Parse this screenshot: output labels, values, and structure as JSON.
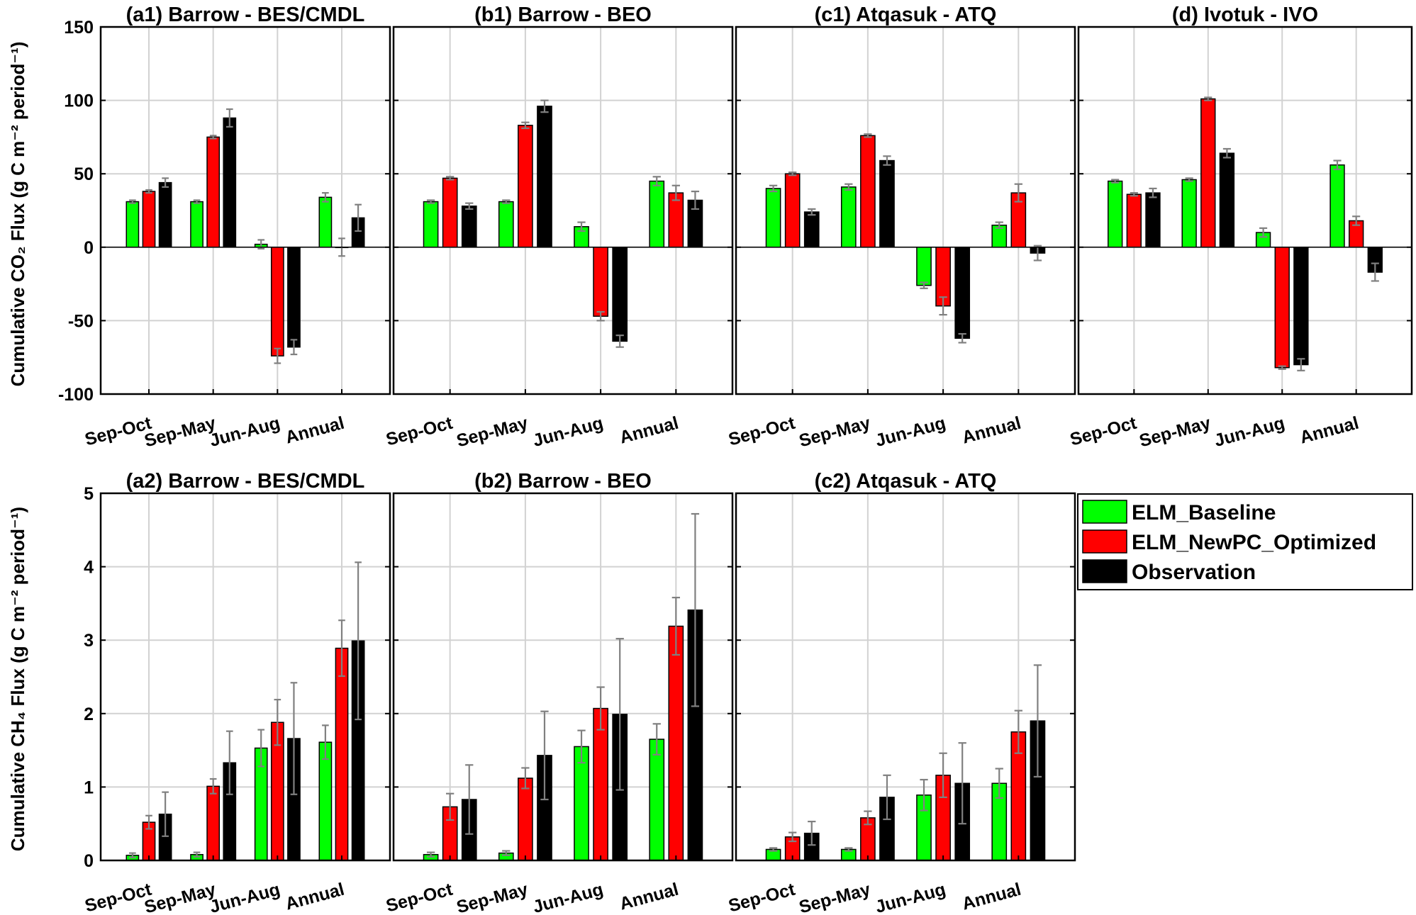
{
  "figure": {
    "co2_ylabel": "Cumulative CO₂ Flux (g C m⁻² period⁻¹)",
    "ch4_ylabel": "Cumulative CH₄ Flux (g C m⁻² period⁻¹)"
  },
  "legend": {
    "items": [
      {
        "label": "ELM_Baseline",
        "color": "#00ff00"
      },
      {
        "label": "ELM_NewPC_Optimized",
        "color": "#ff0000"
      },
      {
        "label": "Observation",
        "color": "#000000"
      }
    ]
  },
  "chart_data": [
    {
      "type": "bar",
      "title": "(a1) Barrow - BES/CMDL",
      "categories": [
        "Sep-Oct",
        "Sep-May",
        "Jun-Aug",
        "Annual"
      ],
      "ylim": [
        -100,
        150
      ],
      "yticks": [
        -100,
        -50,
        0,
        50,
        100,
        150
      ],
      "series": [
        {
          "name": "ELM_Baseline",
          "values": [
            31,
            31,
            2,
            34
          ],
          "errors": [
            1,
            1,
            3,
            3
          ]
        },
        {
          "name": "ELM_NewPC_Optimized",
          "values": [
            38,
            75,
            -74,
            0
          ],
          "errors": [
            1,
            1,
            5,
            6
          ]
        },
        {
          "name": "Observation",
          "values": [
            44,
            88,
            -68,
            20
          ],
          "errors": [
            3,
            6,
            5,
            9
          ]
        }
      ]
    },
    {
      "type": "bar",
      "title": "(b1) Barrow - BEO",
      "categories": [
        "Sep-Oct",
        "Sep-May",
        "Jun-Aug",
        "Annual"
      ],
      "ylim": [
        -100,
        150
      ],
      "yticks": [
        -100,
        -50,
        0,
        50,
        100,
        150
      ],
      "series": [
        {
          "name": "ELM_Baseline",
          "values": [
            31,
            31,
            14,
            45
          ],
          "errors": [
            1,
            1,
            3,
            3
          ]
        },
        {
          "name": "ELM_NewPC_Optimized",
          "values": [
            47,
            83,
            -47,
            37
          ],
          "errors": [
            1,
            2,
            3,
            5
          ]
        },
        {
          "name": "Observation",
          "values": [
            28,
            96,
            -64,
            32
          ],
          "errors": [
            2,
            4,
            4,
            6
          ]
        }
      ]
    },
    {
      "type": "bar",
      "title": "(c1) Atqasuk - ATQ",
      "categories": [
        "Sep-Oct",
        "Sep-May",
        "Jun-Aug",
        "Annual"
      ],
      "ylim": [
        -100,
        150
      ],
      "yticks": [
        -100,
        -50,
        0,
        50,
        100,
        150
      ],
      "series": [
        {
          "name": "ELM_Baseline",
          "values": [
            40,
            41,
            -26,
            15
          ],
          "errors": [
            2,
            2,
            2,
            2
          ]
        },
        {
          "name": "ELM_NewPC_Optimized",
          "values": [
            50,
            76,
            -40,
            37
          ],
          "errors": [
            1,
            1,
            6,
            6
          ]
        },
        {
          "name": "Observation",
          "values": [
            24,
            59,
            -62,
            -4
          ],
          "errors": [
            2,
            3,
            3,
            5
          ]
        }
      ]
    },
    {
      "type": "bar",
      "title": "(d) Ivotuk - IVO",
      "categories": [
        "Sep-Oct",
        "Sep-May",
        "Jun-Aug",
        "Annual"
      ],
      "ylim": [
        -100,
        150
      ],
      "yticks": [
        -100,
        -50,
        0,
        50,
        100,
        150
      ],
      "series": [
        {
          "name": "ELM_Baseline",
          "values": [
            45,
            46,
            10,
            56
          ],
          "errors": [
            1,
            1,
            3,
            3
          ]
        },
        {
          "name": "ELM_NewPC_Optimized",
          "values": [
            36,
            101,
            -82,
            18
          ],
          "errors": [
            1,
            1,
            1,
            3
          ]
        },
        {
          "name": "Observation",
          "values": [
            37,
            64,
            -80,
            -17
          ],
          "errors": [
            3,
            3,
            4,
            6
          ]
        }
      ]
    },
    {
      "type": "bar",
      "title": "(a2) Barrow - BES/CMDL",
      "categories": [
        "Sep-Oct",
        "Sep-May",
        "Jun-Aug",
        "Annual"
      ],
      "ylim": [
        0,
        5
      ],
      "yticks": [
        0,
        1,
        2,
        3,
        4,
        5
      ],
      "series": [
        {
          "name": "ELM_Baseline",
          "values": [
            0.07,
            0.08,
            1.53,
            1.61
          ],
          "errors": [
            0.03,
            0.03,
            0.25,
            0.23
          ]
        },
        {
          "name": "ELM_NewPC_Optimized",
          "values": [
            0.52,
            1.01,
            1.88,
            2.89
          ],
          "errors": [
            0.09,
            0.1,
            0.31,
            0.38
          ]
        },
        {
          "name": "Observation",
          "values": [
            0.63,
            1.33,
            1.66,
            2.99
          ],
          "errors": [
            0.3,
            0.43,
            0.76,
            1.07
          ]
        }
      ]
    },
    {
      "type": "bar",
      "title": "(b2) Barrow - BEO",
      "categories": [
        "Sep-Oct",
        "Sep-May",
        "Jun-Aug",
        "Annual"
      ],
      "ylim": [
        0,
        5
      ],
      "yticks": [
        0,
        1,
        2,
        3,
        4,
        5
      ],
      "series": [
        {
          "name": "ELM_Baseline",
          "values": [
            0.08,
            0.1,
            1.55,
            1.65
          ],
          "errors": [
            0.03,
            0.03,
            0.22,
            0.21
          ]
        },
        {
          "name": "ELM_NewPC_Optimized",
          "values": [
            0.73,
            1.12,
            2.07,
            3.19
          ],
          "errors": [
            0.18,
            0.14,
            0.29,
            0.39
          ]
        },
        {
          "name": "Observation",
          "values": [
            0.83,
            1.43,
            1.99,
            3.41
          ],
          "errors": [
            0.47,
            0.6,
            1.03,
            1.31
          ]
        }
      ]
    },
    {
      "type": "bar",
      "title": "(c2) Atqasuk - ATQ",
      "categories": [
        "Sep-Oct",
        "Sep-May",
        "Jun-Aug",
        "Annual"
      ],
      "ylim": [
        0,
        5
      ],
      "yticks": [
        0,
        1,
        2,
        3,
        4,
        5
      ],
      "series": [
        {
          "name": "ELM_Baseline",
          "values": [
            0.15,
            0.15,
            0.89,
            1.05
          ],
          "errors": [
            0.02,
            0.02,
            0.21,
            0.2
          ]
        },
        {
          "name": "ELM_NewPC_Optimized",
          "values": [
            0.32,
            0.58,
            1.16,
            1.75
          ],
          "errors": [
            0.06,
            0.09,
            0.3,
            0.29
          ]
        },
        {
          "name": "Observation",
          "values": [
            0.37,
            0.86,
            1.05,
            1.9
          ],
          "errors": [
            0.16,
            0.3,
            0.55,
            0.76
          ]
        }
      ]
    }
  ]
}
